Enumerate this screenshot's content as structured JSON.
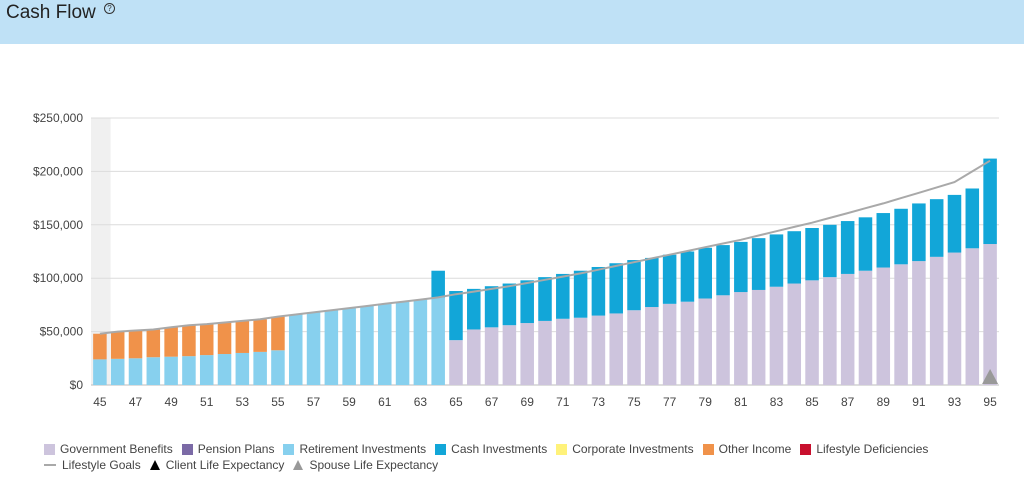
{
  "header": {
    "title": "Cash Flow",
    "help_glyph": "?"
  },
  "chart_data": {
    "type": "bar",
    "stacked": true,
    "x": [
      45,
      46,
      47,
      48,
      49,
      50,
      51,
      52,
      53,
      54,
      55,
      56,
      57,
      58,
      59,
      60,
      61,
      62,
      63,
      64,
      65,
      66,
      67,
      68,
      69,
      70,
      71,
      72,
      73,
      74,
      75,
      76,
      77,
      78,
      79,
      80,
      81,
      82,
      83,
      84,
      85,
      86,
      87,
      88,
      89,
      90,
      91,
      92,
      93,
      94,
      95
    ],
    "x_tick_labels": [
      "45",
      "47",
      "49",
      "51",
      "53",
      "55",
      "57",
      "59",
      "61",
      "63",
      "65",
      "67",
      "69",
      "71",
      "73",
      "75",
      "77",
      "79",
      "81",
      "83",
      "85",
      "87",
      "89",
      "91",
      "93",
      "95"
    ],
    "ylim": [
      0,
      250000
    ],
    "y_tick_labels": [
      "$0",
      "$50,000",
      "$100,000",
      "$150,000",
      "$200,000",
      "$250,000"
    ],
    "y_ticks": [
      0,
      50000,
      100000,
      150000,
      200000,
      250000
    ],
    "grid": true,
    "legend_position": "bottom",
    "series": [
      {
        "name": "Government Benefits",
        "color": "#cdc4dd",
        "values": [
          0,
          0,
          0,
          0,
          0,
          0,
          0,
          0,
          0,
          0,
          0,
          0,
          0,
          0,
          0,
          0,
          0,
          0,
          0,
          0,
          42000,
          52000,
          54000,
          56000,
          58000,
          60000,
          62000,
          63000,
          65000,
          67000,
          70000,
          73000,
          76000,
          78000,
          81000,
          84000,
          87000,
          89000,
          92000,
          95000,
          98000,
          101000,
          104000,
          107000,
          110000,
          113000,
          116000,
          120000,
          124000,
          128000,
          132000
        ]
      },
      {
        "name": "Pension Plans",
        "color": "#7b6aa6",
        "values": [
          0,
          0,
          0,
          0,
          0,
          0,
          0,
          0,
          0,
          0,
          0,
          0,
          0,
          0,
          0,
          0,
          0,
          0,
          0,
          0,
          0,
          0,
          0,
          0,
          0,
          0,
          0,
          0,
          0,
          0,
          0,
          0,
          0,
          0,
          0,
          0,
          0,
          0,
          0,
          0,
          0,
          0,
          0,
          0,
          0,
          0,
          0,
          0,
          0,
          0,
          0
        ]
      },
      {
        "name": "Retirement Investments",
        "color": "#87d0ee",
        "values": [
          24000,
          24500,
          25000,
          26000,
          26500,
          27000,
          28000,
          29000,
          30000,
          31000,
          32500,
          66000,
          68000,
          70000,
          72000,
          74000,
          76000,
          78000,
          80000,
          82000,
          0,
          0,
          0,
          0,
          0,
          0,
          0,
          0,
          0,
          0,
          0,
          0,
          0,
          0,
          0,
          0,
          0,
          0,
          0,
          0,
          0,
          0,
          0,
          0,
          0,
          0,
          0,
          0,
          0,
          0,
          0
        ]
      },
      {
        "name": "Cash Investments",
        "color": "#12a6d8",
        "values": [
          0,
          0,
          0,
          0,
          0,
          0,
          0,
          0,
          0,
          0,
          0,
          0,
          0,
          0,
          0,
          0,
          0,
          0,
          0,
          25000,
          46000,
          38000,
          38500,
          39000,
          40000,
          41000,
          42000,
          44000,
          45500,
          47000,
          47000,
          46000,
          46000,
          47000,
          47500,
          47000,
          47000,
          48500,
          49000,
          49000,
          49000,
          49000,
          49500,
          50000,
          51000,
          52000,
          54000,
          54000,
          54000,
          56000,
          80000
        ]
      },
      {
        "name": "Corporate Investments",
        "color": "#fff27a",
        "values": [
          0,
          0,
          0,
          0,
          0,
          0,
          0,
          0,
          0,
          0,
          0,
          0,
          0,
          0,
          0,
          0,
          0,
          0,
          0,
          0,
          0,
          0,
          0,
          0,
          0,
          0,
          0,
          0,
          0,
          0,
          0,
          0,
          0,
          0,
          0,
          0,
          0,
          0,
          0,
          0,
          0,
          0,
          0,
          0,
          0,
          0,
          0,
          0,
          0,
          0,
          0
        ]
      },
      {
        "name": "Other Income",
        "color": "#f0924a",
        "values": [
          24000,
          25500,
          26000,
          26000,
          27500,
          29000,
          29000,
          29500,
          30000,
          30500,
          31500,
          0,
          0,
          0,
          0,
          0,
          0,
          0,
          0,
          0,
          0,
          0,
          0,
          0,
          0,
          0,
          0,
          0,
          0,
          0,
          0,
          0,
          0,
          0,
          0,
          0,
          0,
          0,
          0,
          0,
          0,
          0,
          0,
          0,
          0,
          0,
          0,
          0,
          0,
          0,
          0
        ]
      },
      {
        "name": "Lifestyle Deficiencies",
        "color": "#c8102e",
        "values": [
          0,
          0,
          0,
          0,
          0,
          0,
          0,
          0,
          0,
          0,
          0,
          0,
          0,
          0,
          0,
          0,
          0,
          0,
          0,
          0,
          0,
          0,
          0,
          0,
          0,
          0,
          0,
          0,
          0,
          0,
          0,
          0,
          0,
          0,
          0,
          0,
          0,
          0,
          0,
          0,
          0,
          0,
          0,
          0,
          0,
          0,
          0,
          0,
          0,
          0,
          0
        ]
      }
    ],
    "lifestyle_goals": {
      "name": "Lifestyle Goals",
      "color": "#a9a9a9",
      "values": [
        48000,
        50000,
        51000,
        52000,
        54000,
        56000,
        57000,
        58500,
        60000,
        61500,
        64000,
        66000,
        68000,
        70000,
        72000,
        74000,
        76000,
        78000,
        80000,
        82000,
        85000,
        87500,
        90000,
        92500,
        95500,
        98500,
        101500,
        104500,
        108000,
        111500,
        115000,
        118500,
        122000,
        125500,
        129000,
        132500,
        136000,
        140000,
        144000,
        148000,
        152000,
        156500,
        161000,
        165500,
        170000,
        175000,
        180000,
        185000,
        190000,
        200000,
        210000
      ]
    },
    "client_life_expectancy": {
      "name": "Client Life Expectancy",
      "color": "#000000"
    },
    "spouse_life_expectancy": {
      "name": "Spouse Life Expectancy",
      "color": "#999999",
      "age": 95
    },
    "highlight_age": 45
  }
}
